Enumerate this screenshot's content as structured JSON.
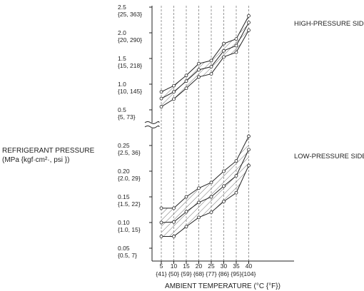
{
  "chart_data": {
    "type": "area",
    "y_label": {
      "line1": "REFRIGERANT PRESSURE",
      "line2": "(MPa {kgf·cm²·, psi })"
    },
    "x_label": "AMBIENT TEMPERATURE  (°C {°F})",
    "x_ticks": [
      {
        "c": "5",
        "f": "{41}"
      },
      {
        "c": "10",
        "f": "{50}"
      },
      {
        "c": "15",
        "f": "{59}"
      },
      {
        "c": "20",
        "f": "{68}"
      },
      {
        "c": "25",
        "f": "{77}"
      },
      {
        "c": "30",
        "f": "{86}"
      },
      {
        "c": "35",
        "f": "{95}"
      },
      {
        "c": "40",
        "f": "{104}"
      }
    ],
    "x": [
      5,
      10,
      15,
      20,
      25,
      30,
      35,
      40
    ],
    "high_side": {
      "label": "HIGH-PRESSURE SIDE",
      "y_range": [
        0.5,
        2.5
      ],
      "ticks": [
        {
          "v": 2.5,
          "mpa": "2.5",
          "alt": "{25, 363}"
        },
        {
          "v": 2.0,
          "mpa": "2.0",
          "alt": "{20, 290}"
        },
        {
          "v": 1.5,
          "mpa": "1.5",
          "alt": "{15, 218}"
        },
        {
          "v": 1.0,
          "mpa": "1.0",
          "alt": "{10, 145}"
        },
        {
          "v": 0.5,
          "mpa": "0.5",
          "alt": "{5, 73}"
        }
      ],
      "upper": [
        0.85,
        0.97,
        1.17,
        1.4,
        1.46,
        1.79,
        1.88,
        2.33
      ],
      "middle": [
        0.72,
        0.85,
        1.06,
        1.28,
        1.34,
        1.65,
        1.75,
        2.2
      ],
      "lower": [
        0.56,
        0.71,
        0.92,
        1.14,
        1.2,
        1.53,
        1.62,
        2.05
      ]
    },
    "low_side": {
      "label": "LOW-PRESSURE SIDE",
      "y_range": [
        0.05,
        0.275
      ],
      "ticks": [
        {
          "v": 0.25,
          "mpa": "0.25",
          "alt": "{2.5, 36}"
        },
        {
          "v": 0.2,
          "mpa": "0.20",
          "alt": "{2.0, 29}"
        },
        {
          "v": 0.15,
          "mpa": "0.15",
          "alt": "{1.5, 22}"
        },
        {
          "v": 0.1,
          "mpa": "0.10",
          "alt": "{1.0, 15}"
        },
        {
          "v": 0.05,
          "mpa": "0.05",
          "alt": "{0.5, 7}"
        }
      ],
      "upper": [
        0.128,
        0.128,
        0.15,
        0.167,
        0.178,
        0.2,
        0.22,
        0.268
      ],
      "middle": [
        0.1,
        0.101,
        0.121,
        0.139,
        0.15,
        0.171,
        0.191,
        0.242
      ],
      "lower": [
        0.073,
        0.073,
        0.092,
        0.11,
        0.12,
        0.141,
        0.158,
        0.211
      ]
    }
  }
}
